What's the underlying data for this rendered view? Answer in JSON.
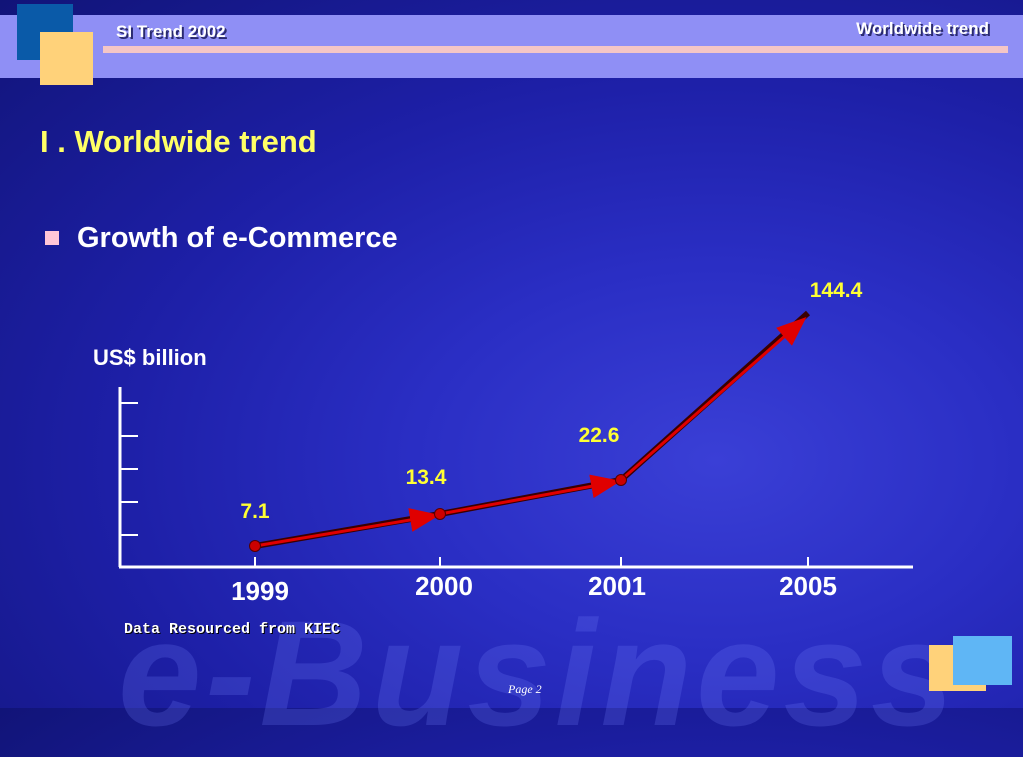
{
  "header": {
    "left_text": "SI Trend 2002",
    "right_text": "Worldwide trend"
  },
  "slide": {
    "title": "I . Worldwide trend",
    "bullet": "Growth of e-Commerce",
    "source": "Data Resourced from KIEC",
    "page": "Page 2",
    "watermark": "e-Business"
  },
  "colors": {
    "line": "#e00000",
    "marker": "#cc0000",
    "data_label": "#ffff33",
    "axis": "#ffffff"
  },
  "chart_data": {
    "type": "line",
    "title": "",
    "ylabel": "US$ billion",
    "xlabel": "",
    "categories": [
      "1999",
      "2000",
      "2001",
      "2005"
    ],
    "values": [
      7.1,
      13.4,
      22.6,
      144.4
    ],
    "data_labels": [
      "7.1",
      "13.4",
      "22.6",
      "144.4"
    ],
    "y_axis_ticks": 5,
    "y_tick_labels_shown": false,
    "legend": "none"
  }
}
